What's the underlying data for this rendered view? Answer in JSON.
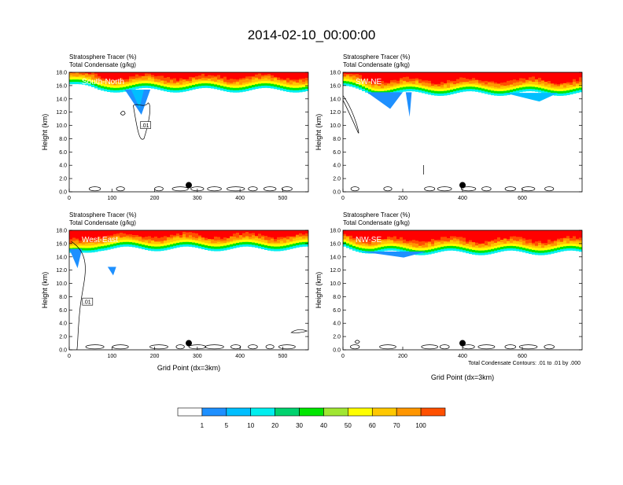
{
  "figure": {
    "title": "2014-02-10_00:00:00",
    "x_axis_label": "Grid Point (dx=3km)",
    "contour_note": "Total Condensate Contours: .01 to .01 by .000"
  },
  "chart_data": [
    {
      "type": "heatmap",
      "panel_label": "South-North",
      "header_line1": "Stratosphere Tracer   (%)",
      "header_line2": "Total Condensate   (g/kg)",
      "ylabel": "Height (km)",
      "xlabel": "",
      "xlim": [
        0,
        560
      ],
      "ylim": [
        0,
        18
      ],
      "xticks": [
        "0",
        "100",
        "200",
        "300",
        "400",
        "500"
      ],
      "yticks": [
        "0.0",
        "2.0",
        "4.0",
        "6.0",
        "8.0",
        "10.0",
        "12.0",
        "14.0",
        "16.0",
        "18.0"
      ],
      "contour_label": ".01",
      "tracer_base_km": 15.3,
      "marker_x": 280
    },
    {
      "type": "heatmap",
      "panel_label": "SW-NE",
      "header_line1": "Stratosphere Tracer   (%)",
      "header_line2": "Total Condensate   (g/kg)",
      "ylabel": "Height (km)",
      "xlabel": "",
      "xlim": [
        0,
        800
      ],
      "ylim": [
        0,
        18
      ],
      "xticks": [
        "0",
        "200",
        "400",
        "600"
      ],
      "yticks": [
        "0.0",
        "2.0",
        "4.0",
        "6.0",
        "8.0",
        "10.0",
        "12.0",
        "14.0",
        "16.0",
        "18.0"
      ],
      "contour_label": "",
      "tracer_base_km": 14.8,
      "marker_x": 400
    },
    {
      "type": "heatmap",
      "panel_label": "West-East",
      "header_line1": "Stratosphere Tracer   (%)",
      "header_line2": "Total Condensate   (g/kg)",
      "ylabel": "Height (km)",
      "xlabel": "Grid Point (dx=3km)",
      "xlim": [
        0,
        560
      ],
      "ylim": [
        0,
        18
      ],
      "xticks": [
        "0",
        "100",
        "200",
        "300",
        "400",
        "500"
      ],
      "yticks": [
        "0.0",
        "2.0",
        "4.0",
        "6.0",
        "8.0",
        "10.0",
        "12.0",
        "14.0",
        "16.0",
        "18.0"
      ],
      "contour_label": ".01",
      "tracer_base_km": 15.2,
      "marker_x": 280
    },
    {
      "type": "heatmap",
      "panel_label": "NW-SE",
      "header_line1": "Stratosphere Tracer   (%)",
      "header_line2": "Total Condensate   (g/kg)",
      "ylabel": "Height (km)",
      "xlabel": "",
      "xlim": [
        0,
        800
      ],
      "ylim": [
        0,
        18
      ],
      "xticks": [
        "0",
        "200",
        "400",
        "600"
      ],
      "yticks": [
        "0.0",
        "2.0",
        "4.0",
        "6.0",
        "8.0",
        "10.0",
        "12.0",
        "14.0",
        "16.0",
        "18.0"
      ],
      "contour_label": "",
      "tracer_base_km": 14.6,
      "marker_x": 400
    }
  ],
  "colorbar": {
    "levels": [
      "1",
      "5",
      "10",
      "20",
      "30",
      "40",
      "50",
      "60",
      "70",
      "100"
    ],
    "colors": [
      "#ffffff",
      "#1e90ff",
      "#00bfff",
      "#00eeee",
      "#00d26e",
      "#00e600",
      "#a0e632",
      "#ffff00",
      "#ffc800",
      "#ff9600",
      "#ff5000",
      "#ff0000"
    ]
  }
}
